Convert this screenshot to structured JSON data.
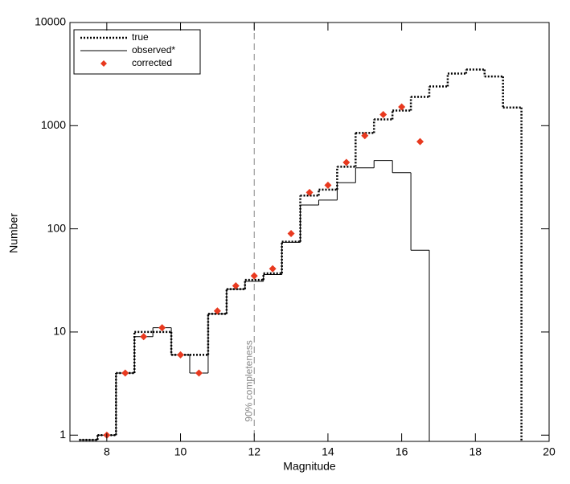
{
  "chart_data": {
    "type": "histogram",
    "xlabel": "Magnitude",
    "ylabel": "Number",
    "xlim": [
      7,
      20
    ],
    "ylim": [
      0.87,
      10000
    ],
    "ylog": true,
    "xticks": [
      8,
      10,
      12,
      14,
      16,
      18,
      20
    ],
    "yticks": [
      1,
      10,
      100,
      1000,
      10000
    ],
    "legend": "upper left",
    "bins": [
      7.25,
      7.75,
      8.25,
      8.75,
      9.25,
      9.75,
      10.25,
      10.75,
      11.25,
      11.75,
      12.25,
      12.75,
      13.25,
      13.75,
      14.25,
      14.75,
      15.25,
      15.75,
      16.25,
      16.75,
      17.25,
      17.75,
      18.25,
      18.75,
      19.25,
      19.75
    ],
    "series": [
      {
        "name": "true",
        "color": "#000000",
        "dash": "dotted",
        "values": [
          0.9,
          1,
          4,
          10,
          10,
          6,
          6,
          15,
          26,
          32,
          37,
          75,
          210,
          240,
          400,
          850,
          1150,
          1400,
          1900,
          2400,
          3200,
          3500,
          3000,
          1500,
          null
        ]
      },
      {
        "name": "observed*",
        "color": "#000000",
        "dash": "solid",
        "values": [
          0.9,
          1,
          4,
          9,
          11,
          6,
          4,
          15,
          26,
          31,
          36,
          74,
          170,
          190,
          280,
          390,
          460,
          350,
          62,
          null,
          null,
          null,
          null,
          null,
          null
        ]
      }
    ],
    "points": {
      "name": "corrected",
      "color": "#e8391f",
      "x": [
        8,
        8.5,
        9,
        9.5,
        10,
        10.5,
        11,
        11.5,
        12,
        12.5,
        13,
        13.5,
        14,
        14.5,
        15,
        15.5,
        16,
        16.5
      ],
      "values": [
        1,
        4,
        9,
        11,
        6,
        4,
        16,
        28,
        35,
        41,
        90,
        225,
        265,
        440,
        800,
        1280,
        1520,
        700
      ]
    },
    "vline": {
      "x": 12,
      "label": "90% completeness",
      "color": "#888888"
    }
  }
}
